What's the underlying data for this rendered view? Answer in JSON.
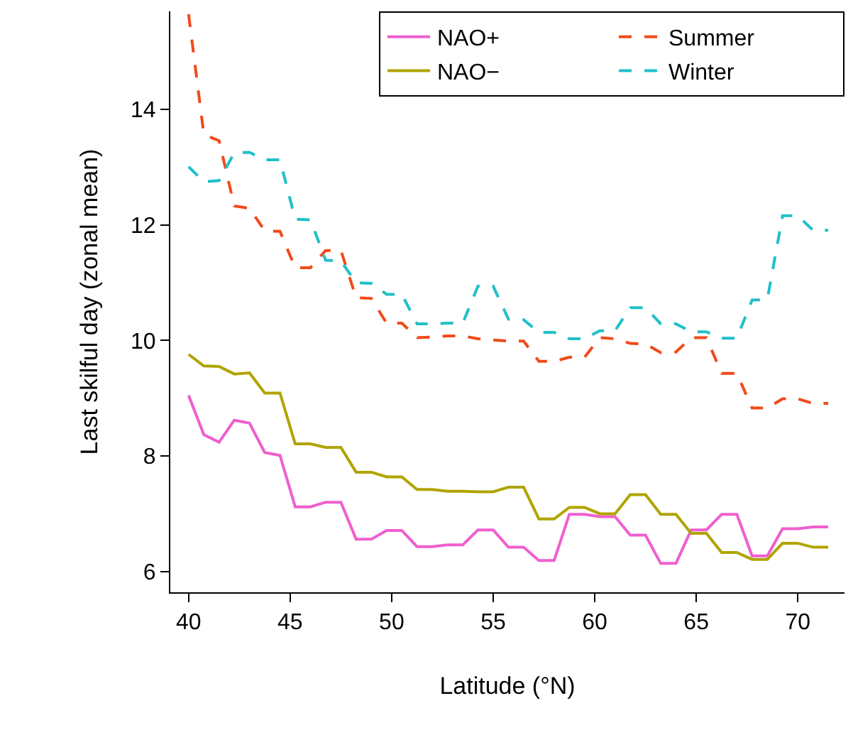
{
  "chart_data": {
    "type": "line",
    "xlabel": "Latitude (°N)",
    "ylabel": "Last skilful day (zonal mean)",
    "x": [
      40,
      40.75,
      41.5,
      42.25,
      43,
      43.75,
      44.5,
      45.25,
      46,
      46.75,
      47.5,
      48.25,
      49,
      49.75,
      50.5,
      51.25,
      52,
      52.75,
      53.5,
      54.25,
      55,
      55.75,
      56.5,
      57.25,
      58,
      58.75,
      59.5,
      60.25,
      61,
      61.75,
      62.5,
      63.25,
      64,
      64.75,
      65.5,
      66.25,
      67,
      67.75,
      68.5,
      69.25,
      70,
      70.75,
      71.5
    ],
    "series": [
      {
        "name": "NAO+",
        "color": "#ef5fcf",
        "line_style": "solid",
        "values": [
          9.05,
          8.37,
          8.24,
          8.62,
          8.57,
          8.06,
          8.01,
          7.12,
          7.12,
          7.2,
          7.2,
          6.56,
          6.56,
          6.71,
          6.71,
          6.43,
          6.43,
          6.46,
          6.46,
          6.72,
          6.72,
          6.42,
          6.42,
          6.19,
          6.19,
          6.99,
          6.99,
          6.95,
          6.95,
          6.63,
          6.63,
          6.14,
          6.14,
          6.72,
          6.72,
          6.99,
          6.99,
          6.27,
          6.27,
          6.74,
          6.74,
          6.77,
          6.77
        ]
      },
      {
        "name": "NAO−",
        "color": "#b0a400",
        "line_style": "solid",
        "values": [
          9.76,
          9.56,
          9.55,
          9.42,
          9.44,
          9.09,
          9.09,
          8.21,
          8.21,
          8.15,
          8.15,
          7.72,
          7.72,
          7.64,
          7.64,
          7.42,
          7.42,
          7.39,
          7.39,
          7.38,
          7.38,
          7.46,
          7.46,
          6.91,
          6.91,
          7.11,
          7.11,
          7.0,
          7.0,
          7.33,
          7.33,
          6.99,
          6.99,
          6.66,
          6.66,
          6.33,
          6.33,
          6.21,
          6.21,
          6.49,
          6.49,
          6.42,
          6.42
        ]
      },
      {
        "name": "Summer",
        "color": "#f24a1a",
        "line_style": "dashed",
        "values": [
          15.65,
          13.57,
          13.46,
          12.33,
          12.29,
          11.9,
          11.89,
          11.26,
          11.26,
          11.56,
          11.56,
          10.74,
          10.73,
          10.3,
          10.3,
          10.05,
          10.06,
          10.08,
          10.08,
          10.03,
          10.01,
          9.99,
          9.99,
          9.64,
          9.64,
          9.71,
          9.71,
          10.05,
          10.03,
          9.95,
          9.94,
          9.79,
          9.8,
          10.05,
          10.05,
          9.43,
          9.43,
          8.83,
          8.83,
          8.99,
          8.99,
          8.91,
          8.91
        ]
      },
      {
        "name": "Winter",
        "color": "#20c0c8",
        "line_style": "dashed",
        "values": [
          13.01,
          12.75,
          12.77,
          13.25,
          13.26,
          13.13,
          13.13,
          12.1,
          12.09,
          11.39,
          11.38,
          11.0,
          10.99,
          10.8,
          10.8,
          10.29,
          10.29,
          10.3,
          10.3,
          10.94,
          10.94,
          10.37,
          10.36,
          10.14,
          10.14,
          10.03,
          10.03,
          10.17,
          10.17,
          10.57,
          10.57,
          10.29,
          10.29,
          10.15,
          10.15,
          10.04,
          10.04,
          10.7,
          10.71,
          12.16,
          12.16,
          11.91,
          11.91
        ]
      }
    ],
    "xlim": [
      39.1,
      72.3
    ],
    "xticks": [
      40,
      45,
      50,
      55,
      60,
      65,
      70
    ],
    "ylim": [
      5.64,
      15.7
    ],
    "yticks": [
      6,
      8,
      10,
      12,
      14
    ],
    "legend": "top right",
    "marker": "none"
  }
}
